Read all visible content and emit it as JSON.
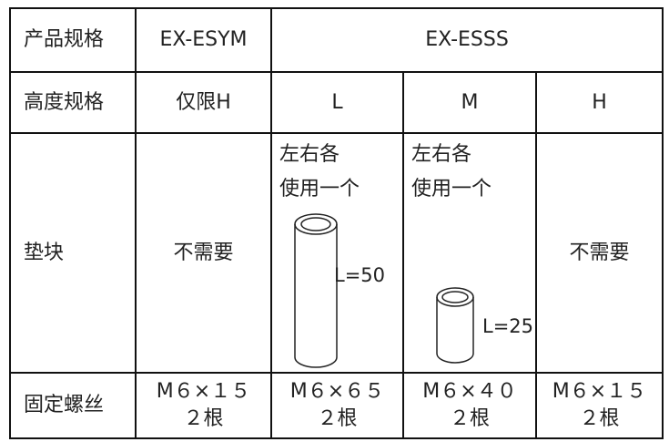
{
  "table": {
    "rows": [
      [
        "产品规格",
        "EX-ESYM",
        "EX-ESSS"
      ],
      [
        "高度规格",
        "仅限H",
        "L",
        "M",
        "H"
      ],
      [
        "垫块",
        "不需要",
        {
          "lines": [
            "左右各",
            "使用一个"
          ],
          "label": "L=50"
        },
        {
          "lines": [
            "左右各",
            "使用一个"
          ],
          "label": "L=25"
        },
        "不需要"
      ],
      [
        "固定螺丝",
        [
          "M６×１５",
          "２根"
        ],
        [
          "M６×６５",
          "２根"
        ],
        [
          "M６×４０",
          "２根"
        ],
        [
          "M６×１５",
          "２根"
        ]
      ]
    ]
  }
}
